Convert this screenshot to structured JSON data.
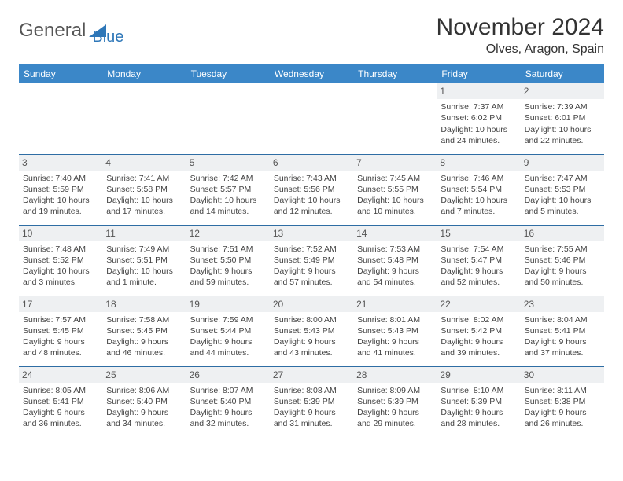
{
  "logo": {
    "text1": "General",
    "text2": "Blue"
  },
  "title": "November 2024",
  "location": "Olves, Aragon, Spain",
  "colors": {
    "header_bg": "#3b87c8",
    "header_text": "#ffffff",
    "row_border": "#2e6da4",
    "daynum_bg": "#eef0f2",
    "logo_blue": "#2e77b8"
  },
  "weekdays": [
    "Sunday",
    "Monday",
    "Tuesday",
    "Wednesday",
    "Thursday",
    "Friday",
    "Saturday"
  ],
  "weeks": [
    [
      null,
      null,
      null,
      null,
      null,
      {
        "d": "1",
        "sr": "7:37 AM",
        "ss": "6:02 PM",
        "dl": "10 hours and 24 minutes."
      },
      {
        "d": "2",
        "sr": "7:39 AM",
        "ss": "6:01 PM",
        "dl": "10 hours and 22 minutes."
      }
    ],
    [
      {
        "d": "3",
        "sr": "7:40 AM",
        "ss": "5:59 PM",
        "dl": "10 hours and 19 minutes."
      },
      {
        "d": "4",
        "sr": "7:41 AM",
        "ss": "5:58 PM",
        "dl": "10 hours and 17 minutes."
      },
      {
        "d": "5",
        "sr": "7:42 AM",
        "ss": "5:57 PM",
        "dl": "10 hours and 14 minutes."
      },
      {
        "d": "6",
        "sr": "7:43 AM",
        "ss": "5:56 PM",
        "dl": "10 hours and 12 minutes."
      },
      {
        "d": "7",
        "sr": "7:45 AM",
        "ss": "5:55 PM",
        "dl": "10 hours and 10 minutes."
      },
      {
        "d": "8",
        "sr": "7:46 AM",
        "ss": "5:54 PM",
        "dl": "10 hours and 7 minutes."
      },
      {
        "d": "9",
        "sr": "7:47 AM",
        "ss": "5:53 PM",
        "dl": "10 hours and 5 minutes."
      }
    ],
    [
      {
        "d": "10",
        "sr": "7:48 AM",
        "ss": "5:52 PM",
        "dl": "10 hours and 3 minutes."
      },
      {
        "d": "11",
        "sr": "7:49 AM",
        "ss": "5:51 PM",
        "dl": "10 hours and 1 minute."
      },
      {
        "d": "12",
        "sr": "7:51 AM",
        "ss": "5:50 PM",
        "dl": "9 hours and 59 minutes."
      },
      {
        "d": "13",
        "sr": "7:52 AM",
        "ss": "5:49 PM",
        "dl": "9 hours and 57 minutes."
      },
      {
        "d": "14",
        "sr": "7:53 AM",
        "ss": "5:48 PM",
        "dl": "9 hours and 54 minutes."
      },
      {
        "d": "15",
        "sr": "7:54 AM",
        "ss": "5:47 PM",
        "dl": "9 hours and 52 minutes."
      },
      {
        "d": "16",
        "sr": "7:55 AM",
        "ss": "5:46 PM",
        "dl": "9 hours and 50 minutes."
      }
    ],
    [
      {
        "d": "17",
        "sr": "7:57 AM",
        "ss": "5:45 PM",
        "dl": "9 hours and 48 minutes."
      },
      {
        "d": "18",
        "sr": "7:58 AM",
        "ss": "5:45 PM",
        "dl": "9 hours and 46 minutes."
      },
      {
        "d": "19",
        "sr": "7:59 AM",
        "ss": "5:44 PM",
        "dl": "9 hours and 44 minutes."
      },
      {
        "d": "20",
        "sr": "8:00 AM",
        "ss": "5:43 PM",
        "dl": "9 hours and 43 minutes."
      },
      {
        "d": "21",
        "sr": "8:01 AM",
        "ss": "5:43 PM",
        "dl": "9 hours and 41 minutes."
      },
      {
        "d": "22",
        "sr": "8:02 AM",
        "ss": "5:42 PM",
        "dl": "9 hours and 39 minutes."
      },
      {
        "d": "23",
        "sr": "8:04 AM",
        "ss": "5:41 PM",
        "dl": "9 hours and 37 minutes."
      }
    ],
    [
      {
        "d": "24",
        "sr": "8:05 AM",
        "ss": "5:41 PM",
        "dl": "9 hours and 36 minutes."
      },
      {
        "d": "25",
        "sr": "8:06 AM",
        "ss": "5:40 PM",
        "dl": "9 hours and 34 minutes."
      },
      {
        "d": "26",
        "sr": "8:07 AM",
        "ss": "5:40 PM",
        "dl": "9 hours and 32 minutes."
      },
      {
        "d": "27",
        "sr": "8:08 AM",
        "ss": "5:39 PM",
        "dl": "9 hours and 31 minutes."
      },
      {
        "d": "28",
        "sr": "8:09 AM",
        "ss": "5:39 PM",
        "dl": "9 hours and 29 minutes."
      },
      {
        "d": "29",
        "sr": "8:10 AM",
        "ss": "5:39 PM",
        "dl": "9 hours and 28 minutes."
      },
      {
        "d": "30",
        "sr": "8:11 AM",
        "ss": "5:38 PM",
        "dl": "9 hours and 26 minutes."
      }
    ]
  ],
  "labels": {
    "sunrise": "Sunrise: ",
    "sunset": "Sunset: ",
    "daylight": "Daylight: "
  }
}
